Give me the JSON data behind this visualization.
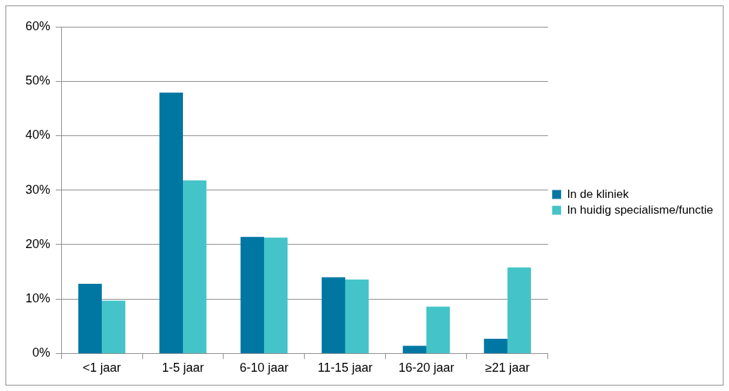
{
  "chart_data": {
    "type": "bar",
    "categories": [
      "<1 jaar",
      "1-5 jaar",
      "6-10 jaar",
      "11-15 jaar",
      "16-20 jaar",
      "≥21 jaar"
    ],
    "series": [
      {
        "name": "In de kliniek",
        "color": "#0077a3",
        "values": [
          12.8,
          47.9,
          21.4,
          14.0,
          1.4,
          2.7
        ]
      },
      {
        "name": "In huidig specialisme/functie",
        "color": "#44c4c8",
        "values": [
          9.7,
          31.8,
          21.3,
          13.6,
          8.6,
          15.8
        ]
      }
    ],
    "ylim": [
      0,
      60
    ],
    "yticks": [
      {
        "value": 0,
        "label": "0%"
      },
      {
        "value": 10,
        "label": "10%"
      },
      {
        "value": 20,
        "label": "20%"
      },
      {
        "value": 30,
        "label": "30%"
      },
      {
        "value": 40,
        "label": "40%"
      },
      {
        "value": 50,
        "label": "50%"
      },
      {
        "value": 60,
        "label": "60%"
      }
    ],
    "grid": "y",
    "legend": "right"
  }
}
